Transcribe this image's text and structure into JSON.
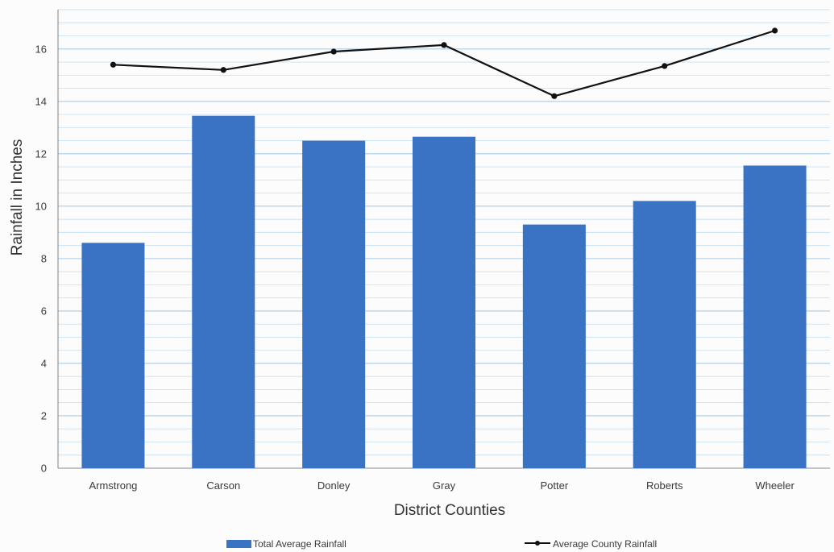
{
  "chart_data": {
    "type": "bar",
    "title": "",
    "xlabel": "District Counties",
    "ylabel": "Rainfall in Inches",
    "categories": [
      "Armstrong",
      "Carson",
      "Donley",
      "Gray",
      "Potter",
      "Roberts",
      "Wheeler"
    ],
    "series": [
      {
        "name": "Total Average Rainfall",
        "type": "bar",
        "color": "#3a73c4",
        "values": [
          8.6,
          13.45,
          12.5,
          12.65,
          9.3,
          10.2,
          11.55
        ]
      },
      {
        "name": "Average County Rainfall",
        "type": "line",
        "color": "#111111",
        "values": [
          15.4,
          15.2,
          15.9,
          16.15,
          14.2,
          15.35,
          16.7
        ]
      }
    ],
    "ylim": [
      0,
      17.5
    ],
    "yticks": [
      0,
      2,
      4,
      6,
      8,
      10,
      12,
      14,
      16
    ],
    "grid": true,
    "legend_position": "bottom"
  }
}
